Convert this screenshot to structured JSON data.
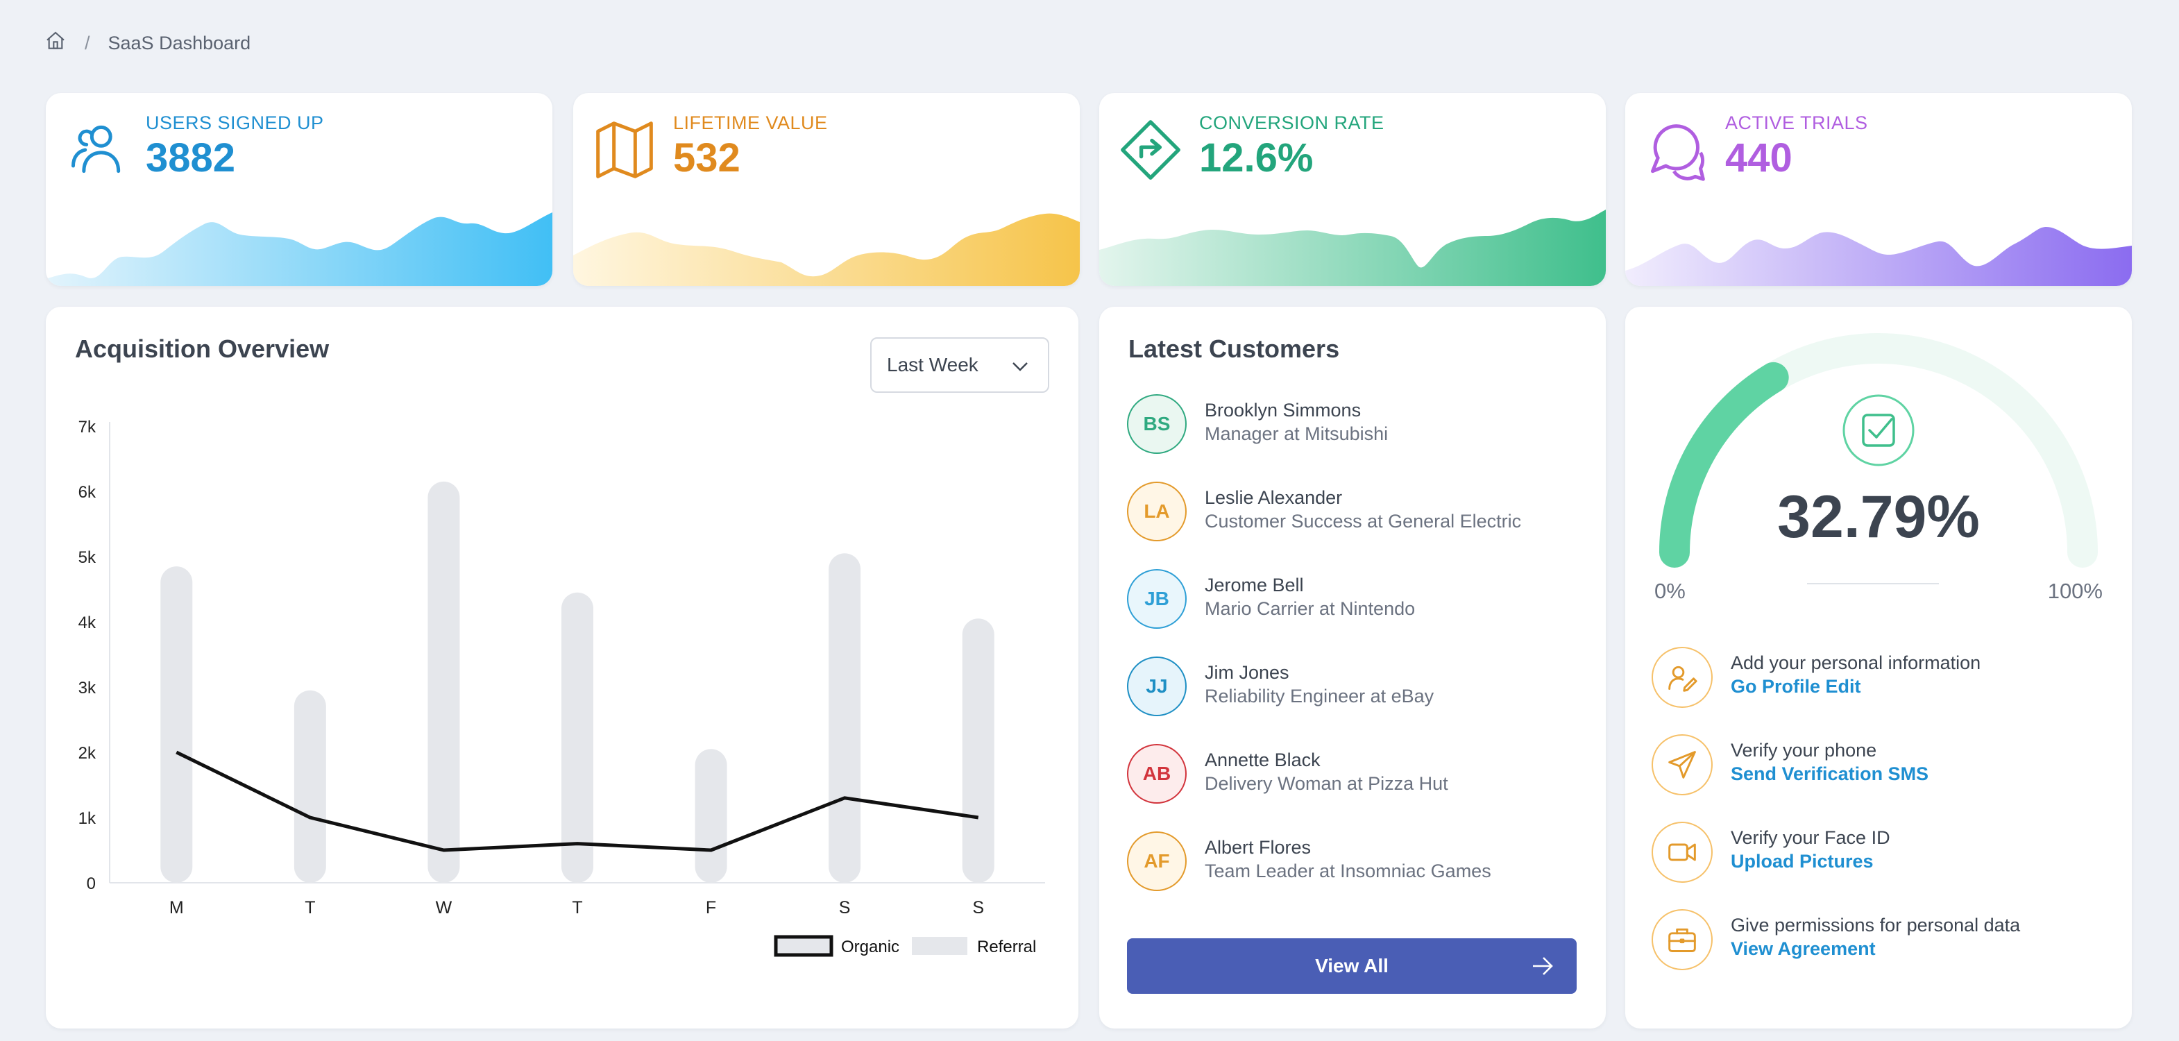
{
  "breadcrumb": {
    "home_icon": "home-icon",
    "separator": "/",
    "current": "SaaS Dashboard"
  },
  "stats": [
    {
      "label": "USERS SIGNED UP",
      "value": "3882",
      "icon": "users-icon",
      "color": "#1f8fd1",
      "wave_from": "#d8f0fb",
      "wave_to": "#41bff5"
    },
    {
      "label": "LIFETIME VALUE",
      "value": "532",
      "icon": "map-icon",
      "color": "#e08a1e",
      "wave_from": "#fff4dc",
      "wave_to": "#f6c44a"
    },
    {
      "label": "CONVERSION RATE",
      "value": "12.6%",
      "icon": "direction-sign-icon",
      "color": "#23a57c",
      "wave_from": "#dff3ea",
      "wave_to": "#3fbf8c"
    },
    {
      "label": "ACTIVE TRIALS",
      "value": "440",
      "icon": "chat-bubbles-icon",
      "color": "#b05ee0",
      "wave_from": "#ece6fc",
      "wave_to": "#8b6cf0"
    }
  ],
  "acquisition": {
    "title": "Acquisition Overview",
    "period": "Last Week",
    "period_icon": "chevron-down-icon"
  },
  "chart_data": {
    "type": "bar",
    "title": "Acquisition Overview",
    "categories": [
      "M",
      "T",
      "W",
      "T",
      "F",
      "S",
      "S"
    ],
    "ylim": [
      0,
      7000
    ],
    "yticks": [
      "0",
      "1k",
      "2k",
      "3k",
      "4k",
      "5k",
      "6k",
      "7k"
    ],
    "series": [
      {
        "name": "Referral",
        "type": "bar",
        "color": "#e5e7eb",
        "values": [
          4850,
          2950,
          6150,
          4450,
          2050,
          5050,
          4050
        ]
      },
      {
        "name": "Organic",
        "type": "line",
        "color": "#111111",
        "values": [
          2000,
          1000,
          500,
          600,
          500,
          1300,
          1000
        ]
      }
    ],
    "legend": "bottom-right"
  },
  "customers": {
    "title": "Latest Customers",
    "items": [
      {
        "initials": "BS",
        "name": "Brooklyn Simmons",
        "role": "Manager at Mitsubishi",
        "color": "#2fa980",
        "bg": "#eaf7f1"
      },
      {
        "initials": "LA",
        "name": "Leslie Alexander",
        "role": "Customer Success at General Electric",
        "color": "#e39a2b",
        "bg": "#fff6e6"
      },
      {
        "initials": "JB",
        "name": "Jerome Bell",
        "role": "Mario Carrier at Nintendo",
        "color": "#2e9fd6",
        "bg": "#e9f6fc"
      },
      {
        "initials": "JJ",
        "name": "Jim Jones",
        "role": "Reliability Engineer at eBay",
        "color": "#1e8fc4",
        "bg": "#e6f4fb"
      },
      {
        "initials": "AB",
        "name": "Annette Black",
        "role": "Delivery Woman at Pizza Hut",
        "color": "#d2343c",
        "bg": "#fdecec"
      },
      {
        "initials": "AF",
        "name": "Albert Flores",
        "role": "Team Leader at Insomniac Games",
        "color": "#e39a2b",
        "bg": "#fff6e6"
      }
    ],
    "view_all": "View All",
    "view_all_icon": "arrow-right-icon"
  },
  "profile": {
    "gauge_value": "32.79%",
    "gauge_fraction": 0.3279,
    "gauge_min": "0%",
    "gauge_max": "100%",
    "gauge_icon": "checkbox-icon",
    "gauge_color": "#5fd3a3",
    "gauge_track": "#eef9f4",
    "tasks": [
      {
        "title": "Add your personal information",
        "link": "Go Profile Edit",
        "icon": "user-edit-icon"
      },
      {
        "title": "Verify your phone",
        "link": "Send Verification SMS",
        "icon": "send-icon"
      },
      {
        "title": "Verify your Face ID",
        "link": "Upload Pictures",
        "icon": "video-camera-icon"
      },
      {
        "title": "Give permissions for personal data",
        "link": "View Agreement",
        "icon": "briefcase-icon"
      }
    ]
  }
}
